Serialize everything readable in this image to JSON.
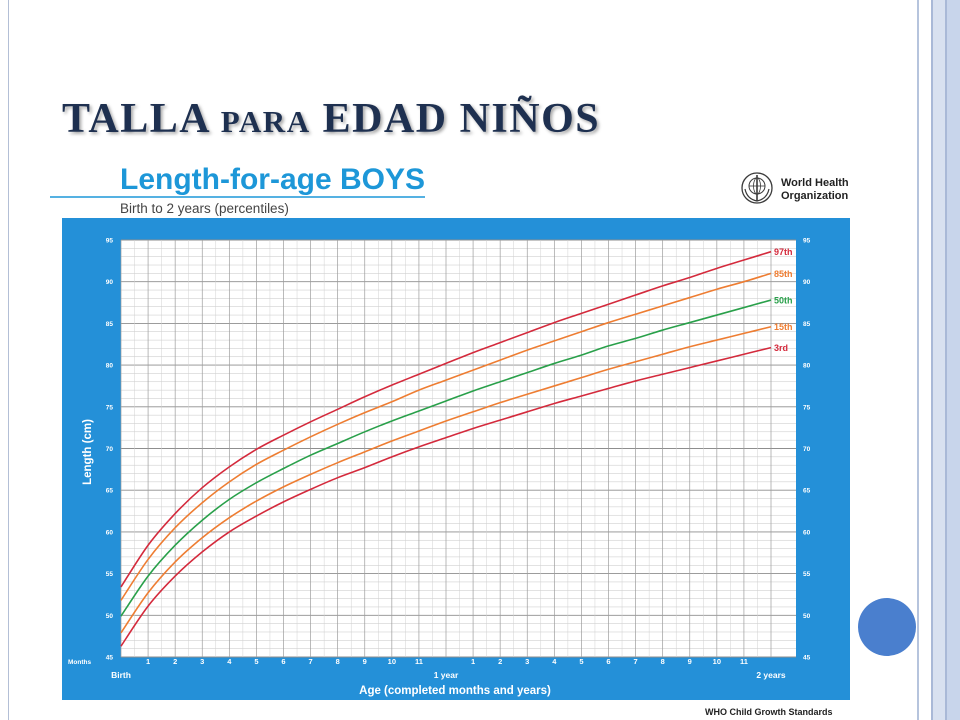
{
  "slide": {
    "title": {
      "part1": "TALLA",
      "part2": "PARA",
      "part3": "EDAD NIÑOS"
    }
  },
  "colors": {
    "panel": "#2490d8",
    "chart_title": "#1d97d8",
    "slide_title": "#1e3050",
    "accent_circle": "#4a7fce"
  },
  "logo": {
    "icon": "who-emblem-icon",
    "line1": "World Health",
    "line2": "Organization"
  },
  "chart_data": {
    "type": "line",
    "title": "Length-for-age BOYS",
    "subtitle": "Birth to 2 years (percentiles)",
    "xlabel": "Age (completed months and years)",
    "ylabel": "Length (cm)",
    "x_unit_label": "Months",
    "xlim": [
      0,
      24
    ],
    "ylim": [
      45,
      95
    ],
    "grid": true,
    "legend": "right",
    "x": [
      0,
      1,
      2,
      3,
      4,
      5,
      6,
      7,
      8,
      9,
      10,
      11,
      12,
      13,
      14,
      15,
      16,
      17,
      18,
      19,
      20,
      21,
      22,
      23,
      24
    ],
    "x_tick_labels": [
      "Birth",
      "1",
      "2",
      "3",
      "4",
      "5",
      "6",
      "7",
      "8",
      "9",
      "10",
      "11",
      "1 year",
      "1",
      "2",
      "3",
      "4",
      "5",
      "6",
      "7",
      "8",
      "9",
      "10",
      "11",
      "2 years"
    ],
    "y_ticks": [
      45,
      50,
      55,
      60,
      65,
      70,
      75,
      80,
      85,
      90,
      95
    ],
    "series": [
      {
        "name": "97th",
        "color": "#d42a3c",
        "values": [
          53.4,
          58.4,
          62.2,
          65.3,
          67.8,
          69.9,
          71.6,
          73.2,
          74.7,
          76.2,
          77.6,
          78.9,
          80.2,
          81.5,
          82.7,
          83.9,
          85.1,
          86.2,
          87.3,
          88.4,
          89.5,
          90.5,
          91.6,
          92.6,
          93.6
        ]
      },
      {
        "name": "85th",
        "color": "#ee7d32",
        "values": [
          51.8,
          56.7,
          60.5,
          63.5,
          66.0,
          68.1,
          69.8,
          71.4,
          72.9,
          74.3,
          75.6,
          77.0,
          78.2,
          79.4,
          80.6,
          81.8,
          82.9,
          84.0,
          85.1,
          86.1,
          87.1,
          88.1,
          89.1,
          90.0,
          91.0
        ]
      },
      {
        "name": "50th",
        "color": "#29a04a",
        "values": [
          49.9,
          54.7,
          58.4,
          61.4,
          63.9,
          65.9,
          67.6,
          69.2,
          70.6,
          72.0,
          73.3,
          74.5,
          75.7,
          76.9,
          78.0,
          79.1,
          80.2,
          81.2,
          82.3,
          83.2,
          84.2,
          85.1,
          86.0,
          86.9,
          87.8
        ]
      },
      {
        "name": "15th",
        "color": "#ee7d32",
        "values": [
          47.9,
          52.7,
          56.4,
          59.3,
          61.7,
          63.7,
          65.4,
          66.9,
          68.3,
          69.6,
          70.9,
          72.1,
          73.3,
          74.4,
          75.5,
          76.5,
          77.5,
          78.5,
          79.5,
          80.4,
          81.3,
          82.2,
          83.0,
          83.8,
          84.6
        ]
      },
      {
        "name": "3rd",
        "color": "#d42a3c",
        "values": [
          46.3,
          51.1,
          54.7,
          57.6,
          60.0,
          61.9,
          63.6,
          65.1,
          66.5,
          67.7,
          69.0,
          70.2,
          71.3,
          72.4,
          73.4,
          74.4,
          75.4,
          76.3,
          77.2,
          78.1,
          78.9,
          79.7,
          80.5,
          81.3,
          82.1
        ]
      }
    ],
    "source": "WHO Child Growth Standards"
  }
}
